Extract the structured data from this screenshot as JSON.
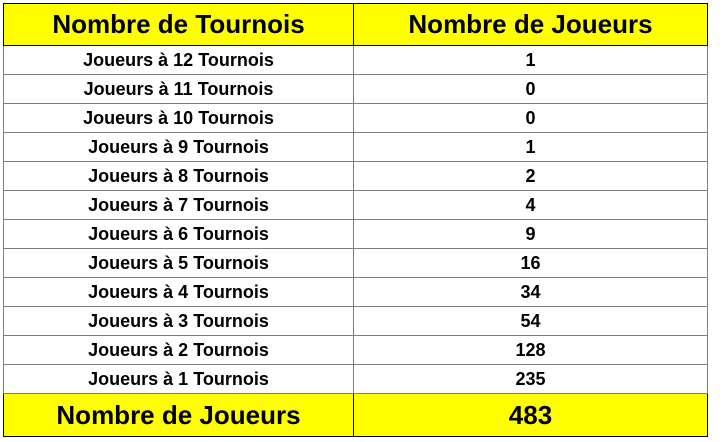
{
  "header": {
    "col1": "Nombre de Tournois",
    "col2": "Nombre de Joueurs"
  },
  "rows": [
    {
      "label": "Joueurs à 12 Tournois",
      "value": "1"
    },
    {
      "label": "Joueurs à 11 Tournois",
      "value": "0"
    },
    {
      "label": "Joueurs à 10 Tournois",
      "value": "0"
    },
    {
      "label": "Joueurs à 9 Tournois",
      "value": "1"
    },
    {
      "label": "Joueurs à 8 Tournois",
      "value": "2"
    },
    {
      "label": "Joueurs à 7 Tournois",
      "value": "4"
    },
    {
      "label": "Joueurs à 6 Tournois",
      "value": "9"
    },
    {
      "label": "Joueurs à 5 Tournois",
      "value": "16"
    },
    {
      "label": "Joueurs à 4 Tournois",
      "value": "34"
    },
    {
      "label": "Joueurs à 3 Tournois",
      "value": "54"
    },
    {
      "label": "Joueurs à 2 Tournois",
      "value": "128"
    },
    {
      "label": "Joueurs à 1 Tournois",
      "value": "235"
    }
  ],
  "total": {
    "label": "Nombre de Joueurs",
    "value": "483"
  },
  "colors": {
    "header_bg": "#ffff00",
    "total_bg": "#ffff00",
    "border": "#7f7f7f",
    "text": "#000000"
  }
}
